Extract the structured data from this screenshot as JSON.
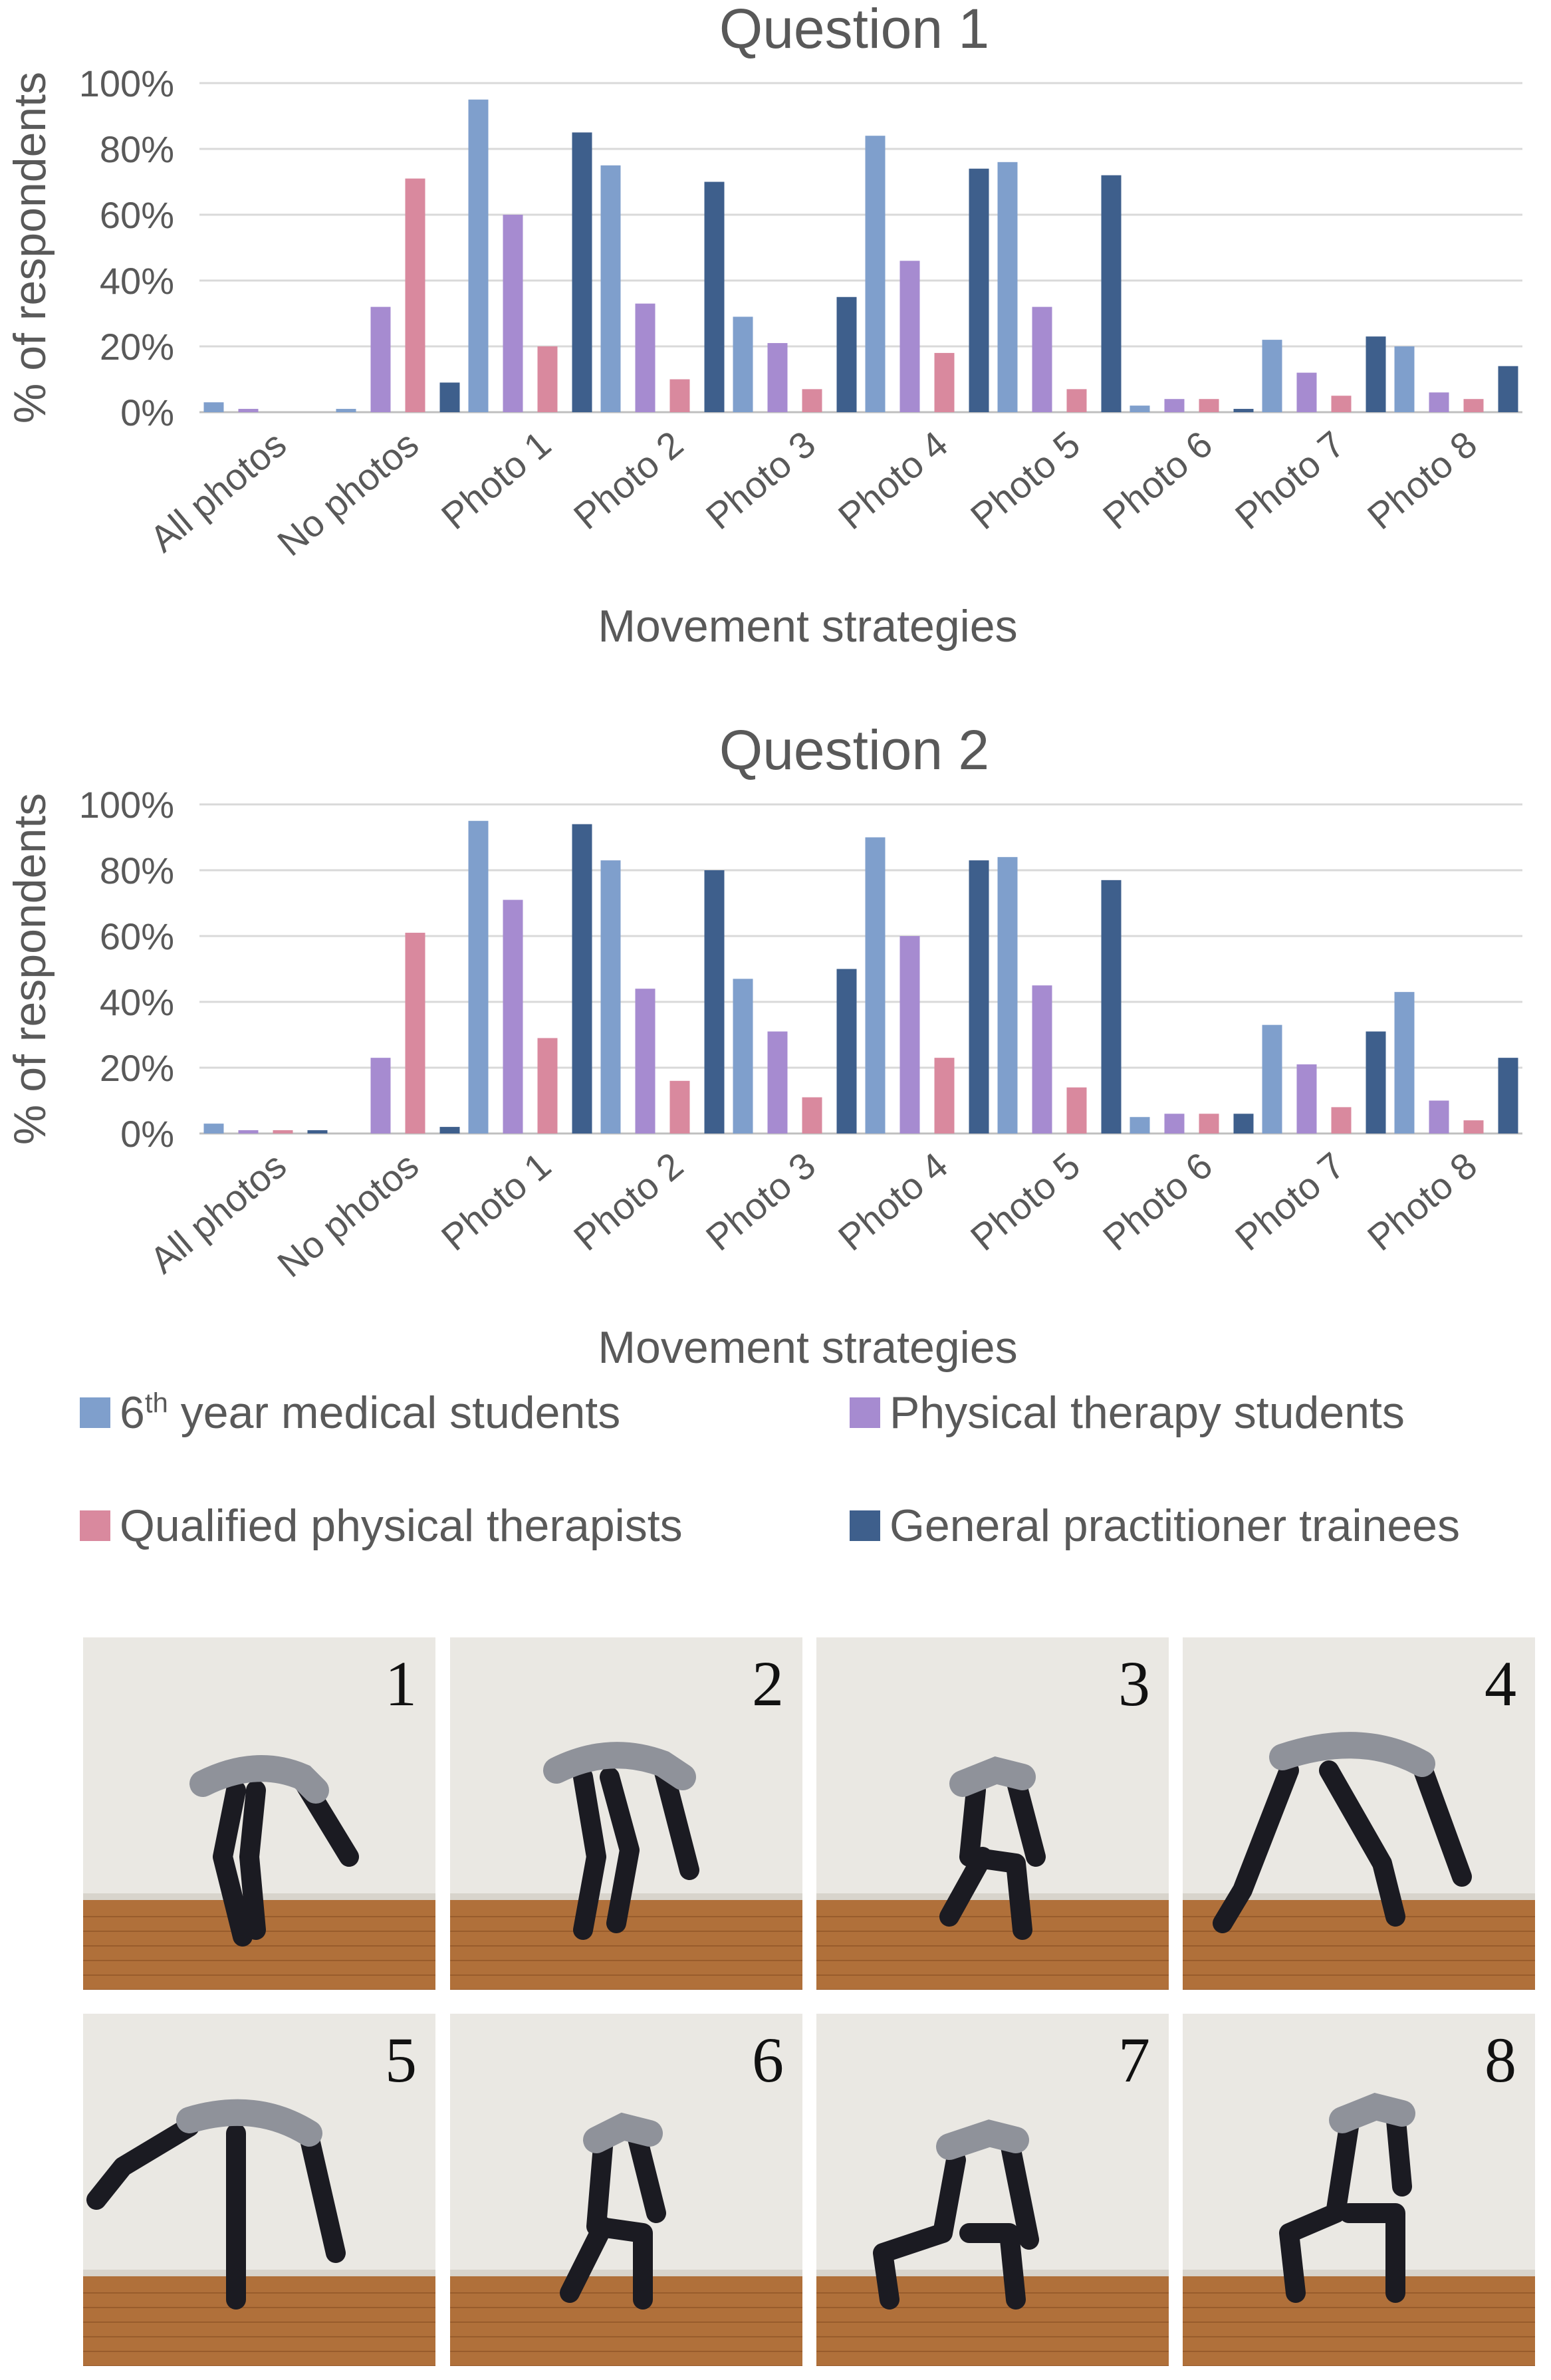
{
  "chart_data": [
    {
      "type": "bar",
      "title": "Question 1",
      "xlabel": "Movement strategies",
      "ylabel": "% of respondents",
      "ylim": [
        0,
        100
      ],
      "yticks": [
        "0%",
        "20%",
        "40%",
        "60%",
        "80%",
        "100%"
      ],
      "grid": true,
      "categories": [
        "All photos",
        "No photos",
        "Photo 1",
        "Photo 2",
        "Photo 3",
        "Photo 4",
        "Photo 5",
        "Photo 6",
        "Photo 7",
        "Photo 8"
      ],
      "series": [
        {
          "name": "6th year medical students",
          "color": "#7f9fcc",
          "values": [
            3,
            1,
            95,
            75,
            29,
            84,
            76,
            2,
            22,
            20
          ]
        },
        {
          "name": "Physical therapy students",
          "color": "#a68bd0",
          "values": [
            1,
            32,
            60,
            33,
            21,
            46,
            32,
            4,
            12,
            6
          ]
        },
        {
          "name": "Qualified physical therapists",
          "color": "#d9899e",
          "values": [
            0,
            71,
            20,
            10,
            7,
            18,
            7,
            4,
            5,
            4
          ]
        },
        {
          "name": "General practitioner trainees",
          "color": "#3e5f8c",
          "values": [
            0,
            9,
            85,
            70,
            35,
            74,
            72,
            1,
            23,
            14
          ]
        }
      ]
    },
    {
      "type": "bar",
      "title": "Question 2",
      "xlabel": "Movement strategies",
      "ylabel": "% of respondents",
      "ylim": [
        0,
        100
      ],
      "yticks": [
        "0%",
        "20%",
        "40%",
        "60%",
        "80%",
        "100%"
      ],
      "grid": true,
      "categories": [
        "All photos",
        "No photos",
        "Photo 1",
        "Photo 2",
        "Photo 3",
        "Photo 4",
        "Photo 5",
        "Photo 6",
        "Photo 7",
        "Photo 8"
      ],
      "series": [
        {
          "name": "6th year medical students",
          "color": "#7f9fcc",
          "values": [
            3,
            0,
            95,
            83,
            47,
            90,
            84,
            5,
            33,
            43
          ]
        },
        {
          "name": "Physical therapy students",
          "color": "#a68bd0",
          "values": [
            1,
            23,
            71,
            44,
            31,
            60,
            45,
            6,
            21,
            10
          ]
        },
        {
          "name": "Qualified physical therapists",
          "color": "#d9899e",
          "values": [
            1,
            61,
            29,
            16,
            11,
            23,
            14,
            6,
            8,
            4
          ]
        },
        {
          "name": "General practitioner trainees",
          "color": "#3e5f8c",
          "values": [
            1,
            2,
            94,
            80,
            50,
            83,
            77,
            6,
            31,
            23
          ]
        }
      ]
    }
  ],
  "legend": {
    "placement": "bottom",
    "items": [
      {
        "prefix": "6",
        "sup": "th",
        "suffix": " year medical students",
        "color": "#7f9fcc"
      },
      {
        "prefix": "Physical therapy students",
        "sup": "",
        "suffix": "",
        "color": "#a68bd0"
      },
      {
        "prefix": "Qualified physical therapists",
        "sup": "",
        "suffix": "",
        "color": "#d9899e"
      },
      {
        "prefix": "General practitioner trainees",
        "sup": "",
        "suffix": "",
        "color": "#3e5f8c"
      }
    ]
  },
  "photos": [
    {
      "number": "1",
      "pose": "stoop-both-knees-slightly-bent"
    },
    {
      "number": "2",
      "pose": "stoop-knees-bent"
    },
    {
      "number": "3",
      "pose": "full-squat"
    },
    {
      "number": "4",
      "pose": "split-stance-reach"
    },
    {
      "number": "5",
      "pose": "golfer-lift-one-leg"
    },
    {
      "number": "6",
      "pose": "deep-squat-heels-up"
    },
    {
      "number": "7",
      "pose": "half-kneel"
    },
    {
      "number": "8",
      "pose": "kneel-hand-on-knee"
    }
  ]
}
